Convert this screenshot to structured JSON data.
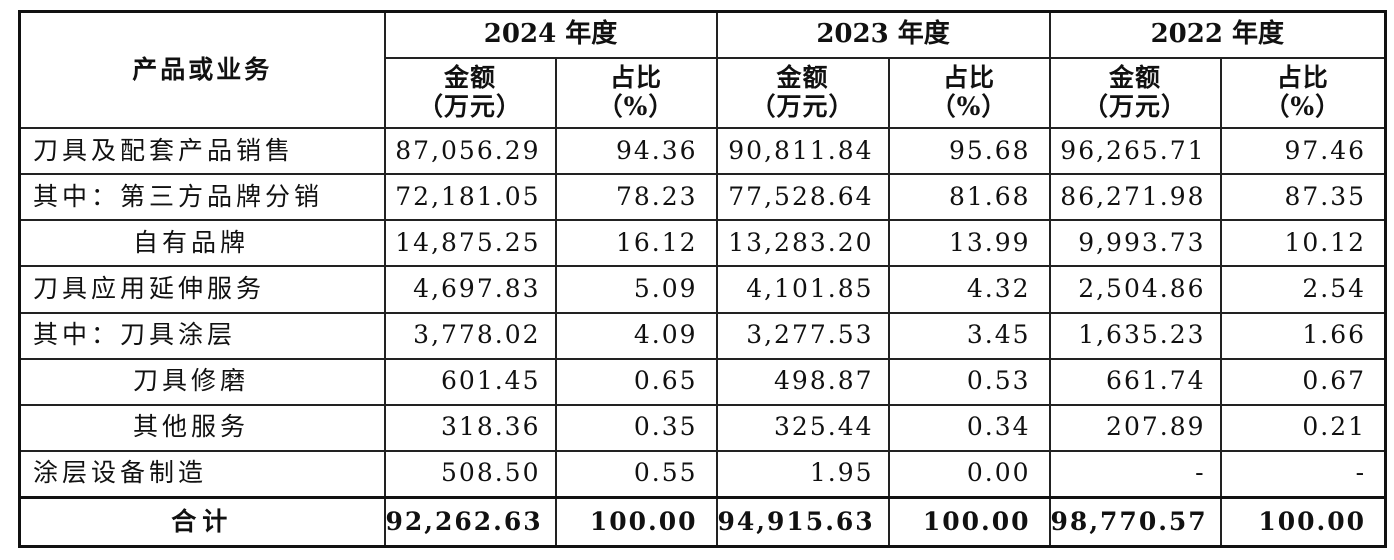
{
  "header": {
    "category_label": "产品或业务",
    "years": [
      "2024 年度",
      "2023 年度",
      "2022 年度"
    ],
    "amount_label": [
      "金额",
      "（万元）"
    ],
    "ratio_label": [
      "占比",
      "（%）"
    ]
  },
  "rows": [
    {
      "label": "刀具及配套产品销售",
      "indent": false,
      "v": [
        "87,056.29",
        "94.36",
        "90,811.84",
        "95.68",
        "96,265.71",
        "97.46"
      ]
    },
    {
      "label": "其中：第三方品牌分销",
      "indent": false,
      "v": [
        "72,181.05",
        "78.23",
        "77,528.64",
        "81.68",
        "86,271.98",
        "87.35"
      ]
    },
    {
      "label": "自有品牌",
      "indent": true,
      "v": [
        "14,875.25",
        "16.12",
        "13,283.20",
        "13.99",
        "9,993.73",
        "10.12"
      ]
    },
    {
      "label": "刀具应用延伸服务",
      "indent": false,
      "v": [
        "4,697.83",
        "5.09",
        "4,101.85",
        "4.32",
        "2,504.86",
        "2.54"
      ]
    },
    {
      "label": "其中：刀具涂层",
      "indent": false,
      "v": [
        "3,778.02",
        "4.09",
        "3,277.53",
        "3.45",
        "1,635.23",
        "1.66"
      ]
    },
    {
      "label": "刀具修磨",
      "indent": true,
      "v": [
        "601.45",
        "0.65",
        "498.87",
        "0.53",
        "661.74",
        "0.67"
      ]
    },
    {
      "label": "其他服务",
      "indent": true,
      "v": [
        "318.36",
        "0.35",
        "325.44",
        "0.34",
        "207.89",
        "0.21"
      ]
    },
    {
      "label": "涂层设备制造",
      "indent": false,
      "v": [
        "508.50",
        "0.55",
        "1.95",
        "0.00",
        "-",
        "-"
      ]
    }
  ],
  "total": {
    "label": "合计",
    "v": [
      "92,262.63",
      "100.00",
      "94,915.63",
      "100.00",
      "98,770.57",
      "100.00"
    ]
  }
}
